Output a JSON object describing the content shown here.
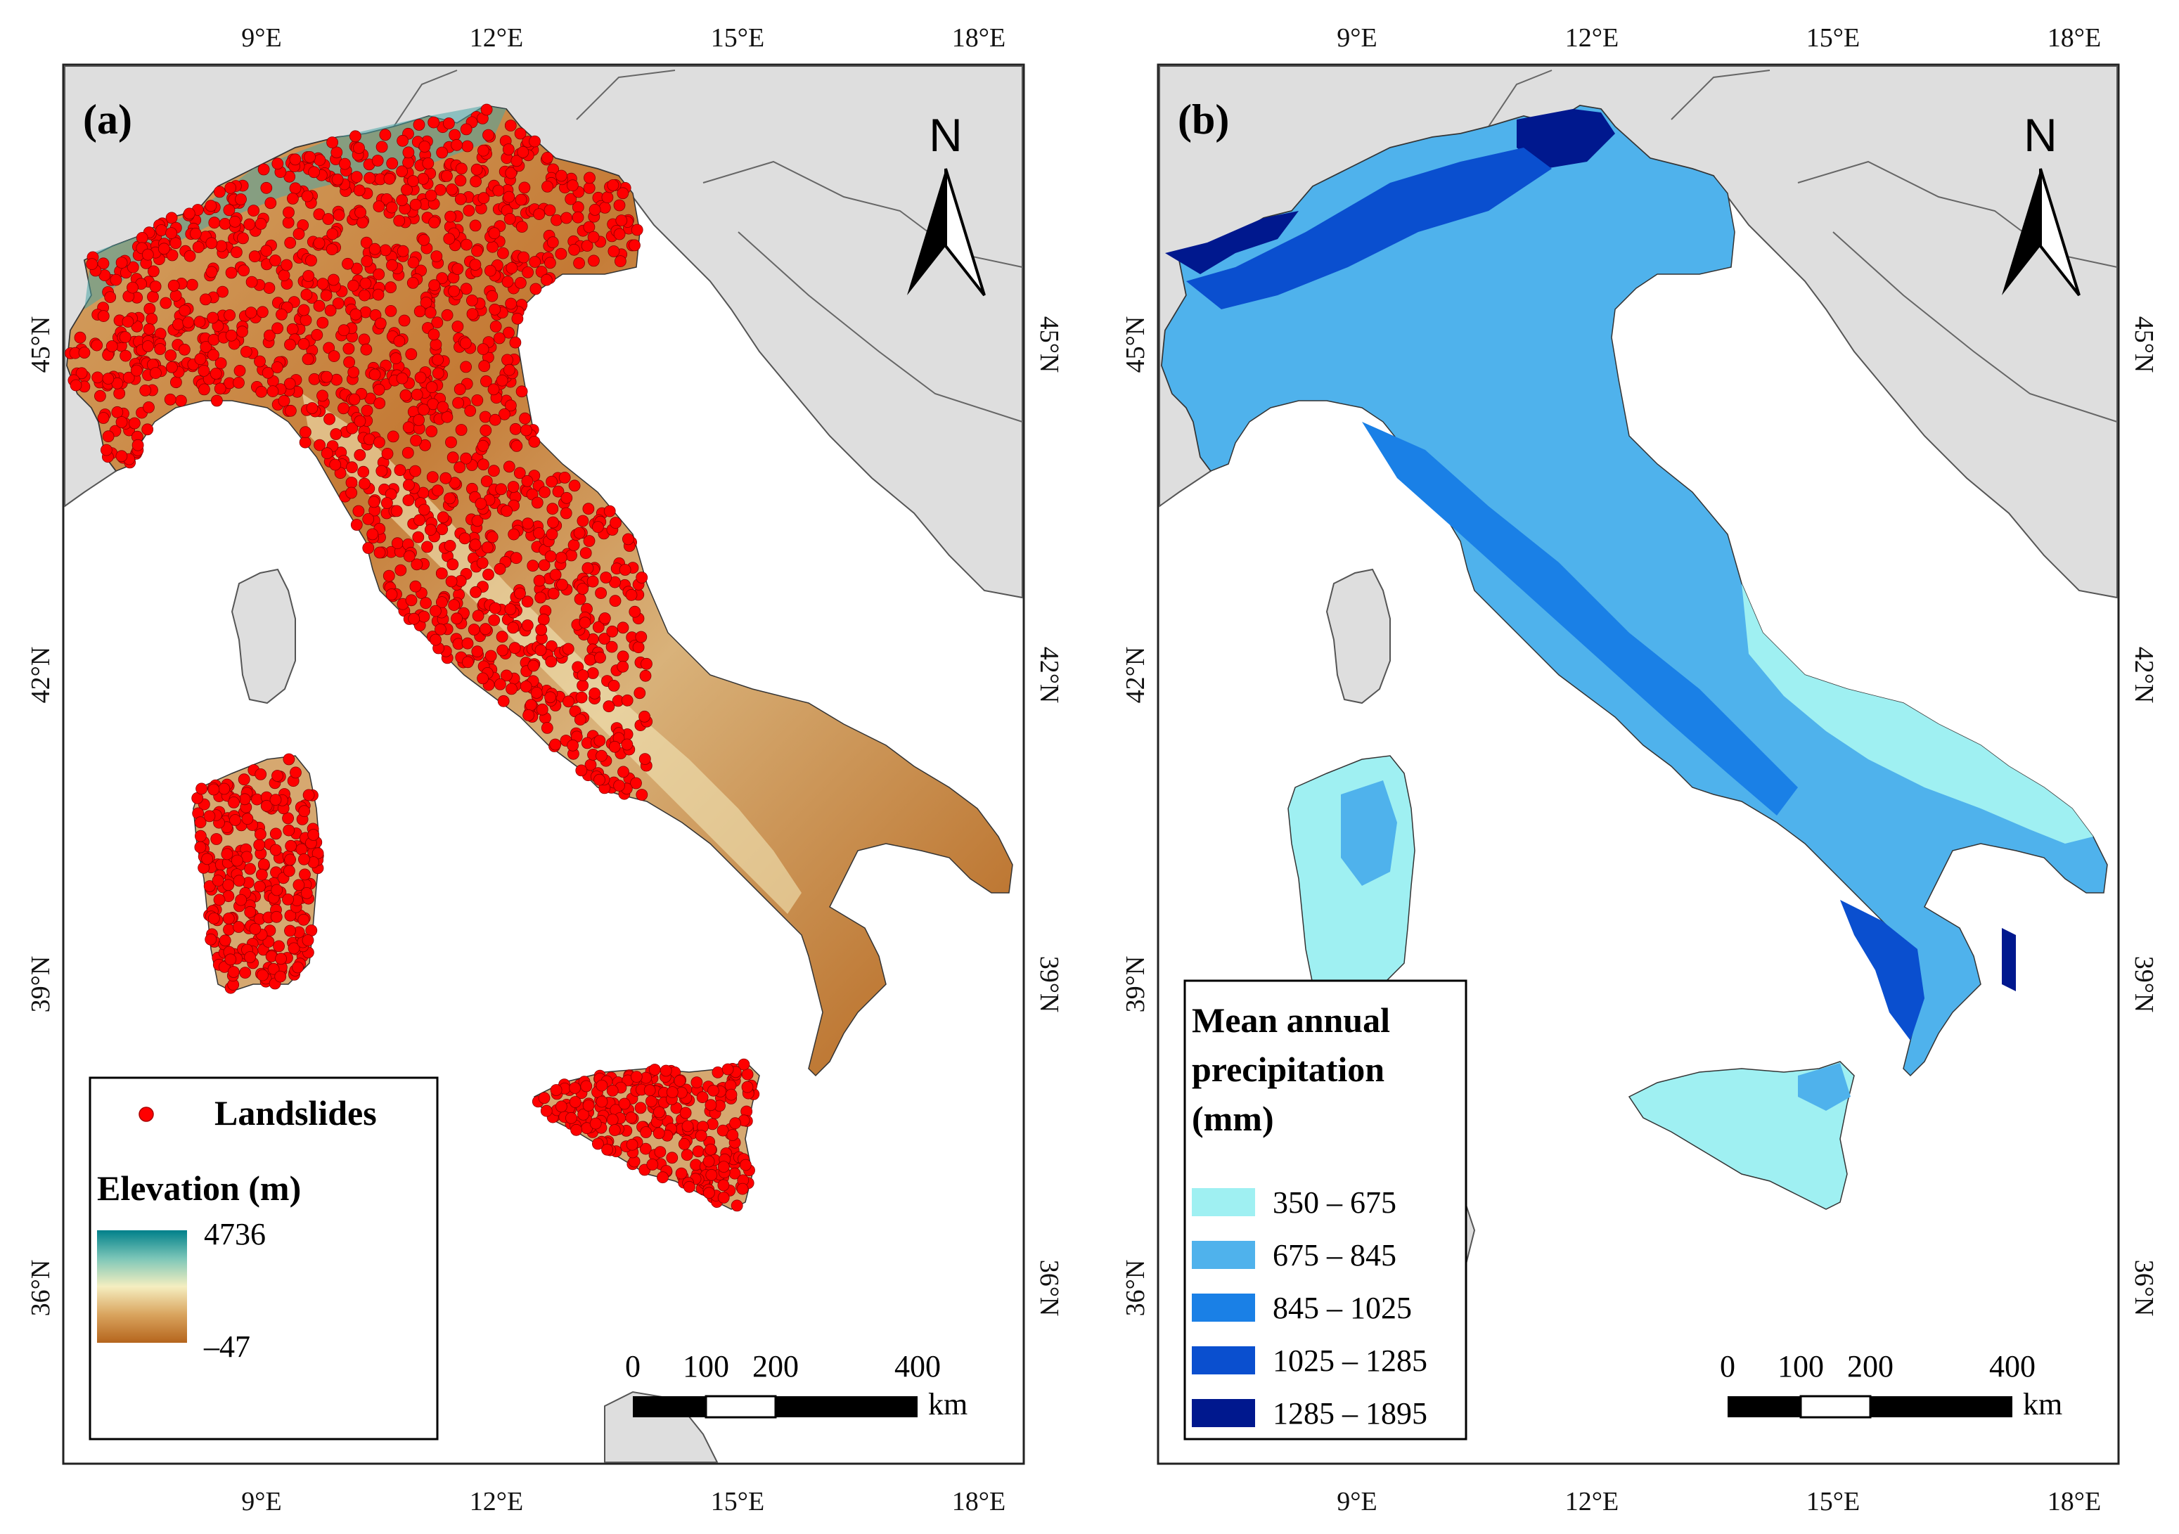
{
  "colors": {
    "land_gray": "#dedede",
    "border": "#555555",
    "landslide_red": "#ff0000",
    "elev_low": "#b5651d",
    "elev_mid": "#f5eec0",
    "elev_high": "#00808a",
    "precip": [
      "#9ff0f2",
      "#4fb2ec",
      "#1a80e6",
      "#0a4fcf",
      "#00188e"
    ]
  },
  "axes": {
    "top_ticks": [
      "9°E",
      "12°E",
      "15°E",
      "18°E"
    ],
    "bottom_ticks": [
      "9°E",
      "12°E",
      "15°E",
      "18°E"
    ],
    "left_ticks": [
      "45°N",
      "42°N",
      "39°N",
      "36°N"
    ],
    "right_ticks": [
      "45°N",
      "42°N",
      "39°N",
      "36°N"
    ]
  },
  "panel_a": {
    "label": "(a)",
    "north": "N",
    "legend": {
      "landslides_label": "Landslides",
      "elevation_title": "Elevation (m)",
      "elev_max": "4736",
      "elev_min": "–47"
    },
    "scale": {
      "ticks": [
        "0",
        "100",
        "200",
        "400"
      ],
      "unit": "km"
    }
  },
  "panel_b": {
    "label": "(b)",
    "north": "N",
    "legend": {
      "title_lines": [
        "Mean annual",
        "precipitation",
        "(mm)"
      ],
      "classes": [
        "350 – 675",
        "675 – 845",
        "845 – 1025",
        "1025 – 1285",
        "1285 – 1895"
      ]
    },
    "scale": {
      "ticks": [
        "0",
        "100",
        "200",
        "400"
      ],
      "unit": "km"
    }
  }
}
